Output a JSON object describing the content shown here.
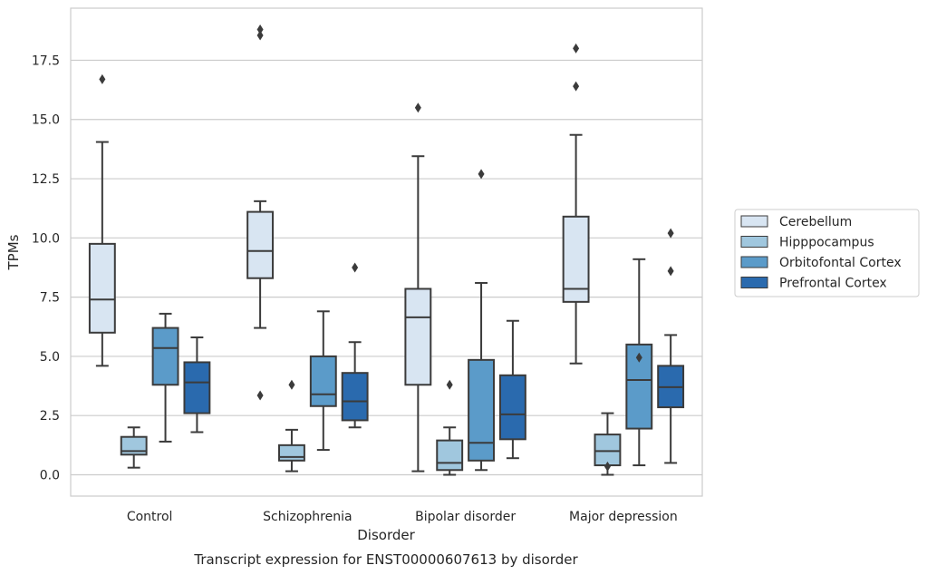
{
  "chart_data": {
    "type": "box",
    "xlabel": "Disorder",
    "ylabel": "TPMs",
    "caption": "Transcript expression for ENST00000607613 by disorder",
    "ylim": [
      -0.9,
      19.7
    ],
    "yticks": [
      "0.0",
      "2.5",
      "5.0",
      "7.5",
      "10.0",
      "12.5",
      "15.0",
      "17.5"
    ],
    "grid": "horizontal",
    "legend_position": "right",
    "categories": [
      "Control",
      "Schizophrenia",
      "Bipolar disorder",
      "Major depression"
    ],
    "series": [
      {
        "name": "Cerebellum",
        "color": "#d8e5f2",
        "boxes": [
          {
            "whislo": 4.6,
            "q1": 6.0,
            "med": 7.4,
            "q3": 9.75,
            "whishi": 14.05,
            "fliers": [
              16.7
            ]
          },
          {
            "whislo": 6.2,
            "q1": 8.3,
            "med": 9.45,
            "q3": 11.1,
            "whishi": 11.55,
            "fliers": [
              3.35,
              18.55,
              18.8
            ]
          },
          {
            "whislo": 0.15,
            "q1": 3.8,
            "med": 6.65,
            "q3": 7.85,
            "whishi": 13.45,
            "fliers": [
              15.5
            ]
          },
          {
            "whislo": 4.7,
            "q1": 7.3,
            "med": 7.85,
            "q3": 10.9,
            "whishi": 14.35,
            "fliers": [
              16.4,
              18.0
            ]
          }
        ]
      },
      {
        "name": "Hipppocampus",
        "color": "#a0c7de",
        "boxes": [
          {
            "whislo": 0.3,
            "q1": 0.85,
            "med": 1.0,
            "q3": 1.6,
            "whishi": 2.0,
            "fliers": []
          },
          {
            "whislo": 0.15,
            "q1": 0.6,
            "med": 0.75,
            "q3": 1.25,
            "whishi": 1.9,
            "fliers": [
              3.8
            ]
          },
          {
            "whislo": 0.0,
            "q1": 0.2,
            "med": 0.5,
            "q3": 1.45,
            "whishi": 2.0,
            "fliers": [
              3.8
            ]
          },
          {
            "whislo": 0.0,
            "q1": 0.4,
            "med": 1.0,
            "q3": 1.7,
            "whishi": 2.6,
            "fliers": [
              0.35
            ]
          }
        ]
      },
      {
        "name": "Orbitofontal Cortex",
        "color": "#5b9bc9",
        "boxes": [
          {
            "whislo": 1.4,
            "q1": 3.8,
            "med": 5.35,
            "q3": 6.2,
            "whishi": 6.8,
            "fliers": []
          },
          {
            "whislo": 1.05,
            "q1": 2.9,
            "med": 3.4,
            "q3": 5.0,
            "whishi": 6.9,
            "fliers": []
          },
          {
            "whislo": 0.2,
            "q1": 0.6,
            "med": 1.35,
            "q3": 4.85,
            "whishi": 8.1,
            "fliers": [
              12.7
            ]
          },
          {
            "whislo": 0.4,
            "q1": 1.95,
            "med": 4.0,
            "q3": 5.5,
            "whishi": 9.1,
            "fliers": [
              4.95
            ]
          }
        ]
      },
      {
        "name": "Prefrontal Cortex",
        "color": "#2a6aae",
        "boxes": [
          {
            "whislo": 1.8,
            "q1": 2.6,
            "med": 3.9,
            "q3": 4.75,
            "whishi": 5.8,
            "fliers": []
          },
          {
            "whislo": 2.0,
            "q1": 2.3,
            "med": 3.1,
            "q3": 4.3,
            "whishi": 5.6,
            "fliers": [
              8.75
            ]
          },
          {
            "whislo": 0.7,
            "q1": 1.5,
            "med": 2.55,
            "q3": 4.2,
            "whishi": 6.5,
            "fliers": []
          },
          {
            "whislo": 0.5,
            "q1": 2.85,
            "med": 3.7,
            "q3": 4.6,
            "whishi": 5.9,
            "fliers": [
              8.6,
              10.2
            ]
          }
        ]
      }
    ]
  }
}
